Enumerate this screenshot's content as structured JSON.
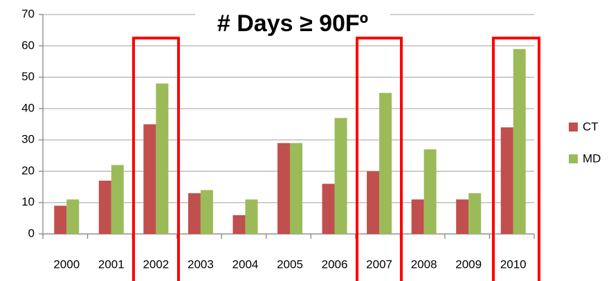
{
  "chart_data": {
    "type": "bar",
    "title": "# Days ≥ 90Fº",
    "categories": [
      "2000",
      "2001",
      "2002",
      "2003",
      "2004",
      "2005",
      "2006",
      "2007",
      "2008",
      "2009",
      "2010"
    ],
    "series": [
      {
        "name": "CT",
        "color": "#c0504d",
        "values": [
          9,
          17,
          35,
          13,
          6,
          29,
          16,
          20,
          11,
          11,
          34
        ]
      },
      {
        "name": "MD",
        "color": "#9bbb59",
        "values": [
          11,
          22,
          48,
          14,
          11,
          29,
          37,
          45,
          27,
          13,
          59
        ]
      }
    ],
    "ylim": [
      0,
      70
    ],
    "yticks": [
      0,
      10,
      20,
      30,
      40,
      50,
      60,
      70
    ],
    "grid": true,
    "legend": "right"
  }
}
